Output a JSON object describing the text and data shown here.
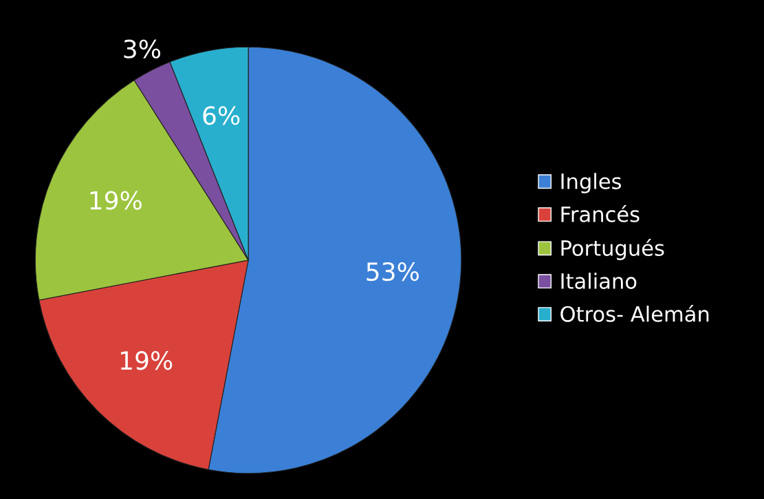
{
  "chart_data": {
    "type": "pie",
    "categories": [
      "Ingles",
      "Francés",
      "Portugués",
      "Italiano",
      "Otros- Alemán"
    ],
    "values": [
      53,
      19,
      19,
      3,
      6
    ],
    "value_labels": [
      "53%",
      "19%",
      "19%",
      "3%",
      "6%"
    ],
    "colors": [
      "#3b80d6",
      "#d8423b",
      "#9cc43e",
      "#7a4f9f",
      "#29afce"
    ],
    "legend": "right"
  }
}
